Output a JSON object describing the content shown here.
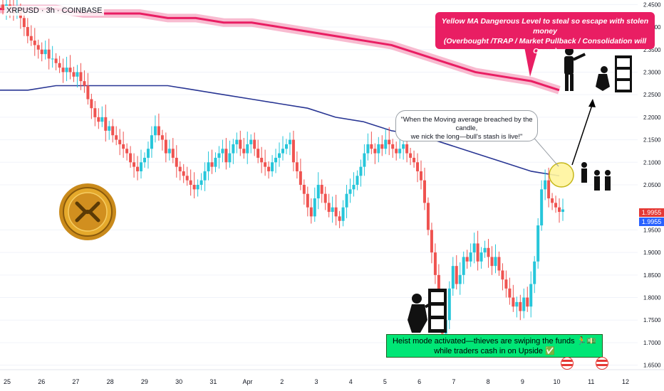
{
  "symbol": "XRPUSD · 3h · COINBASE",
  "red_note": {
    "line1": "Yellow MA Dangerous Level to steal so escape with stolen money",
    "line2": "(Overbought /TRAP / Market Pullback / Consolidation will Occur)"
  },
  "bubble": {
    "line1": "\"When the Moving average breached by the candle,",
    "line2": "we nick the long—bull's stash is live!\""
  },
  "heist": {
    "line1": "Heist mode activated—thieves are swiping the funds 🏃💵",
    "line2": "while traders cash in on Upside ✅"
  },
  "colors": {
    "up": "#26c6da",
    "down": "#ef5350",
    "ma_long": "#283593",
    "ma_band": "#e91e63",
    "note_bg": "#e91e63",
    "heist_bg": "#00e676",
    "price_tag": "#e53935",
    "price_tag2": "#2962ff"
  },
  "icons": [
    "xrp-coin-icon",
    "thief-silhouette-icon",
    "money-vault-icon",
    "us-flag-icon",
    "target-circle-icon"
  ],
  "price_tags": {
    "last": "1.9955",
    "last2": "1.9955"
  },
  "chart_data": {
    "type": "candlestick",
    "x_ticks": [
      "25",
      "26",
      "27",
      "28",
      "29",
      "30",
      "31",
      "Apr",
      "2",
      "3",
      "4",
      "5",
      "6",
      "7",
      "8",
      "9",
      "10",
      "11",
      "12"
    ],
    "y_ticks": [
      "2.4500",
      "2.4000",
      "2.3500",
      "2.3000",
      "2.2500",
      "2.2000",
      "2.1500",
      "2.1000",
      "2.0500",
      "1.9500",
      "1.9000",
      "1.8500",
      "1.8000",
      "1.7500",
      "1.7000",
      "1.6500"
    ],
    "ylim": [
      1.64,
      2.46
    ],
    "xlim": [
      25,
      12
    ],
    "closes": [
      2.44,
      2.45,
      2.44,
      2.43,
      2.44,
      2.42,
      2.4,
      2.38,
      2.37,
      2.36,
      2.35,
      2.34,
      2.35,
      2.33,
      2.33,
      2.32,
      2.31,
      2.3,
      2.31,
      2.3,
      2.29,
      2.3,
      2.28,
      2.27,
      2.24,
      2.22,
      2.2,
      2.19,
      2.2,
      2.17,
      2.18,
      2.16,
      2.15,
      2.14,
      2.13,
      2.12,
      2.1,
      2.09,
      2.08,
      2.1,
      2.11,
      2.13,
      2.16,
      2.18,
      2.16,
      2.15,
      2.12,
      2.13,
      2.11,
      2.09,
      2.08,
      2.07,
      2.06,
      2.05,
      2.04,
      2.05,
      2.06,
      2.08,
      2.1,
      2.09,
      2.11,
      2.12,
      2.13,
      2.1,
      2.12,
      2.14,
      2.15,
      2.13,
      2.12,
      2.14,
      2.15,
      2.13,
      2.11,
      2.1,
      2.09,
      2.08,
      2.1,
      2.11,
      2.12,
      2.13,
      2.14,
      2.15,
      2.1,
      2.08,
      2.05,
      2.03,
      2.0,
      1.98,
      2.02,
      2.05,
      2.03,
      2.01,
      1.99,
      2.0,
      1.98,
      1.97,
      2.0,
      2.03,
      2.04,
      2.05,
      2.07,
      2.09,
      2.12,
      2.14,
      2.13,
      2.12,
      2.14,
      2.13,
      2.15,
      2.14,
      2.13,
      2.12,
      2.13,
      2.14,
      2.12,
      2.11,
      2.1,
      2.08,
      2.06,
      2.01,
      1.95,
      1.9,
      1.85,
      1.79,
      1.72,
      1.75,
      1.82,
      1.87,
      1.83,
      1.85,
      1.89,
      1.88,
      1.9,
      1.92,
      1.88,
      1.9,
      1.91,
      1.89,
      1.87,
      1.89,
      1.86,
      1.84,
      1.82,
      1.8,
      1.78,
      1.79,
      1.77,
      1.8,
      1.78,
      1.83,
      1.88,
      1.96,
      2.04,
      2.06,
      2.02,
      2.01,
      2.0,
      1.99,
      1.9955
    ],
    "moving_averages": [
      {
        "name": "",
        "values": [
          2.26,
          2.26,
          2.27,
          2.27,
          2.27,
          2.27,
          2.27,
          2.26,
          2.25,
          2.24,
          2.23,
          2.22,
          2.2,
          2.19,
          2.17,
          2.16,
          2.14,
          2.12,
          2.1,
          2.08,
          2.07
        ]
      },
      {
        "name": "",
        "values": [
          2.44,
          2.44,
          2.44,
          2.43,
          2.43,
          2.43,
          2.42,
          2.42,
          2.41,
          2.41,
          2.4,
          2.39,
          2.38,
          2.37,
          2.36,
          2.34,
          2.32,
          2.3,
          2.29,
          2.28,
          2.26
        ]
      }
    ],
    "last_price": 1.9955
  }
}
